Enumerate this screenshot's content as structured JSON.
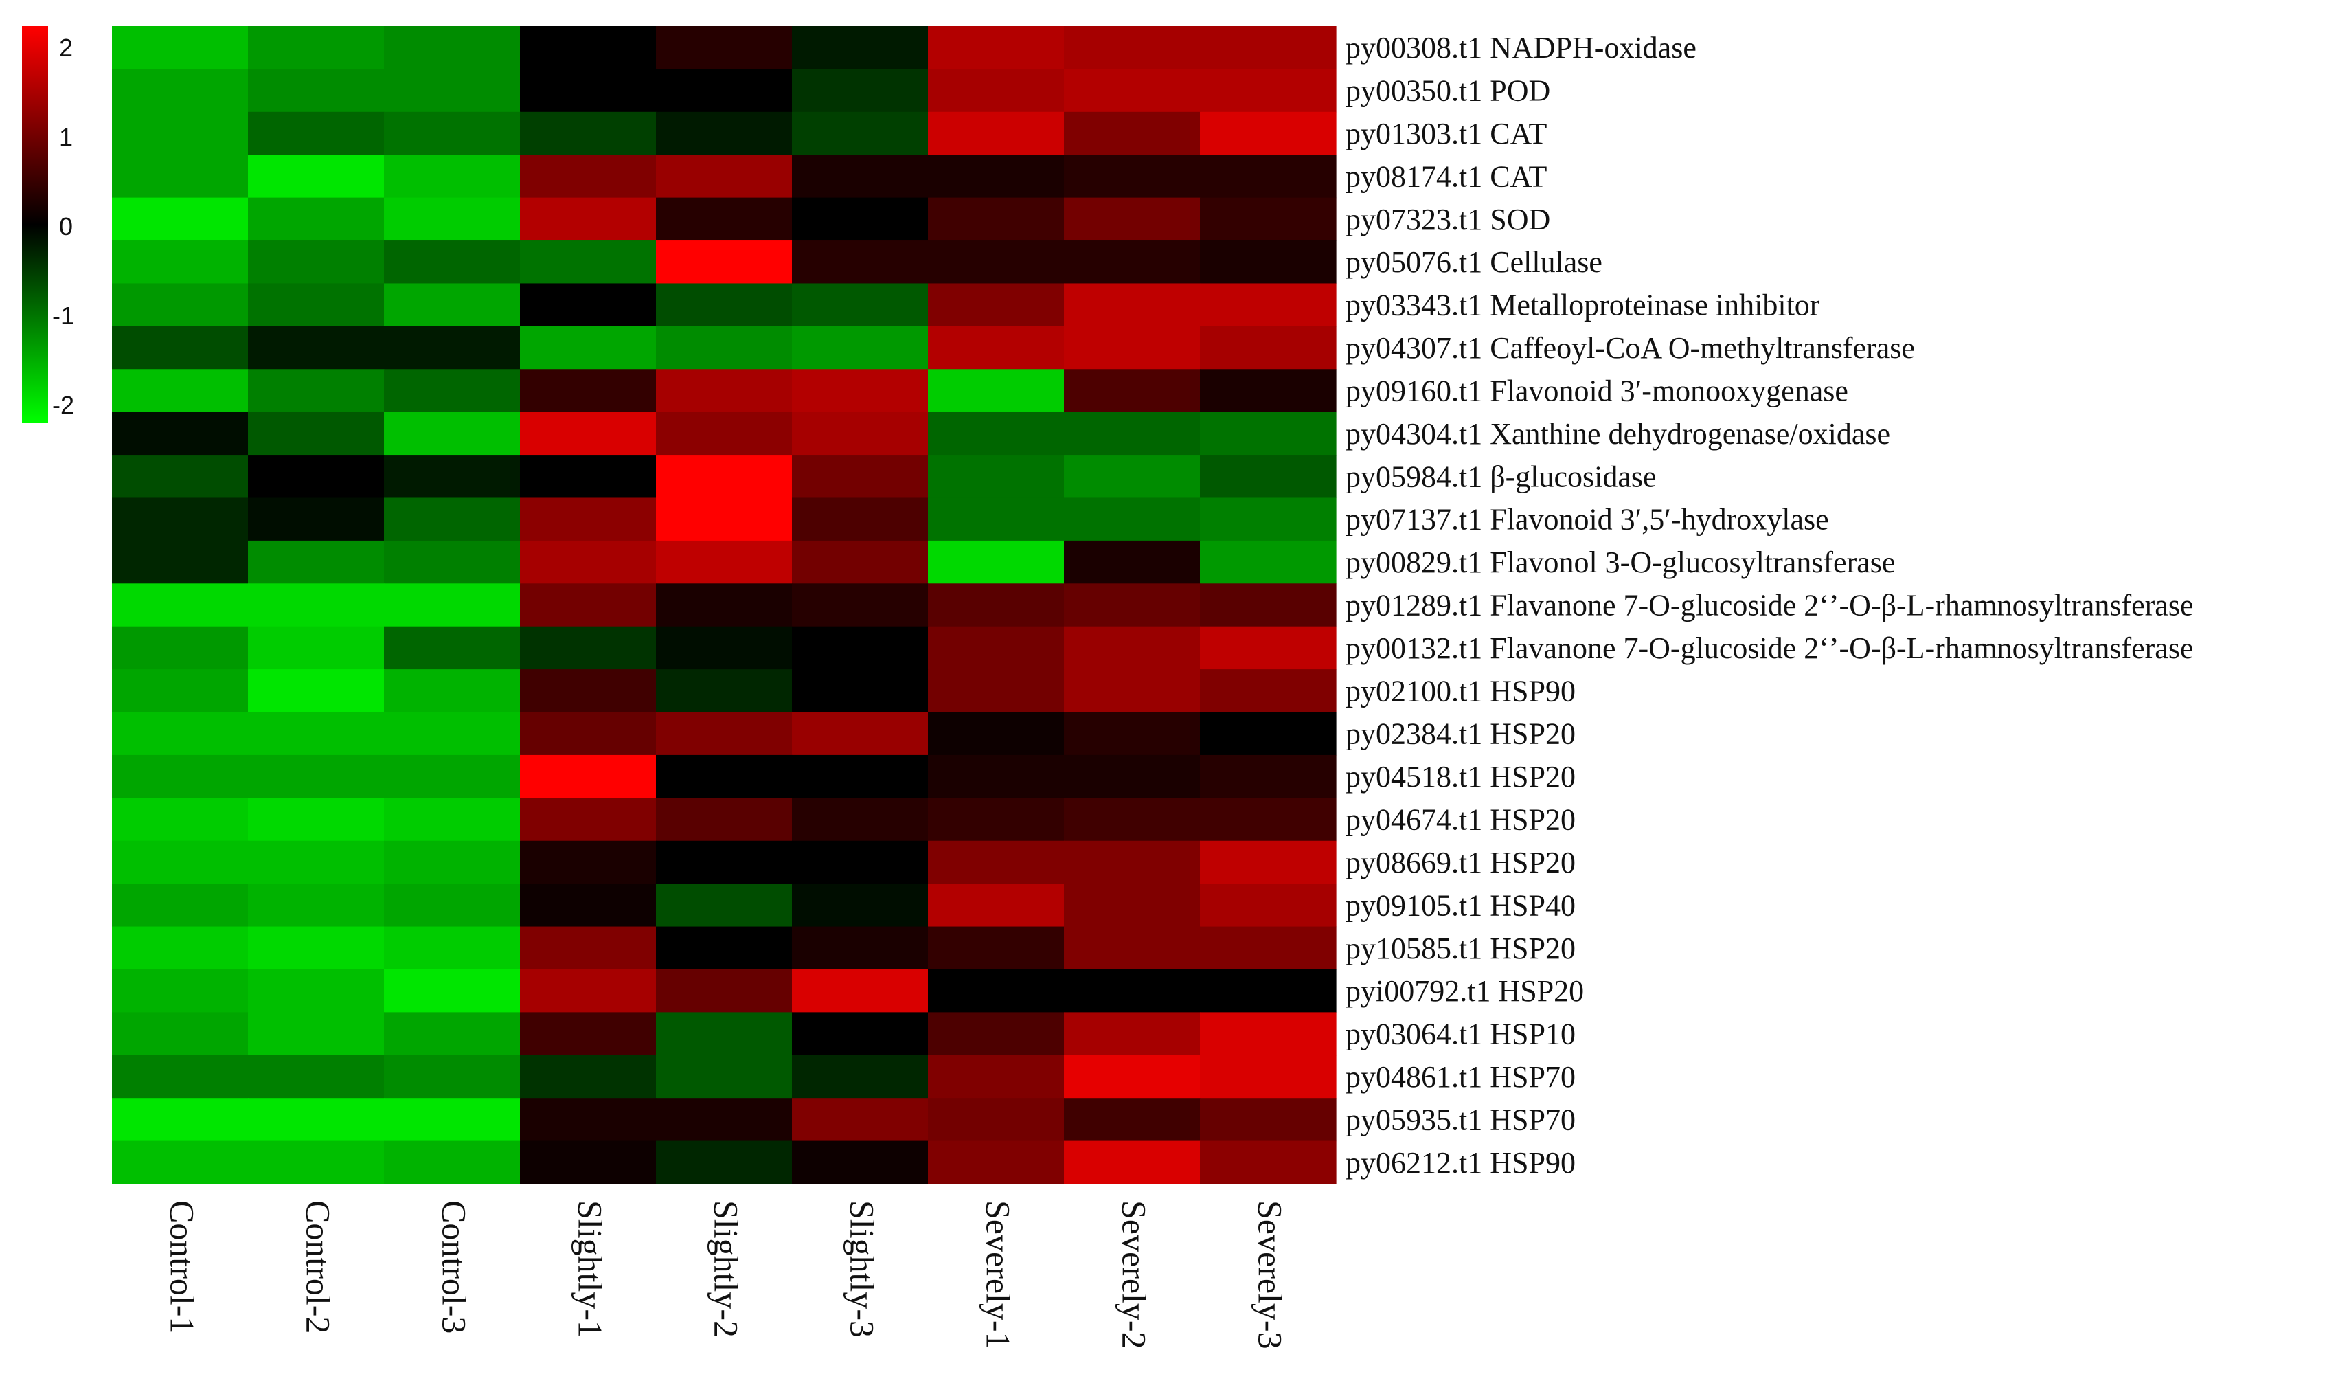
{
  "chart_data": {
    "type": "heatmap",
    "title": "",
    "xlabel": "",
    "ylabel": "",
    "color_scale": {
      "min": -2,
      "max": 2,
      "ticks": [
        "2",
        "1",
        "0",
        "-1",
        "-2"
      ],
      "low_color": "#00ff00",
      "mid_color": "#000000",
      "high_color": "#ff0000"
    },
    "columns": [
      "Control-1",
      "Control-2",
      "Control-3",
      "Slightly-1",
      "Slightly-2",
      "Slightly-3",
      "Severely-1",
      "Severely-2",
      "Severely-3"
    ],
    "rows": [
      "py00308.t1 NADPH-oxidase",
      "py00350.t1 POD",
      "py01303.t1 CAT",
      "py08174.t1 CAT",
      "py07323.t1 SOD",
      "py05076.t1 Cellulase",
      "py03343.t1 Metalloproteinase inhibitor",
      "py04307.t1 Caffeoyl-CoA O-methyltransferase",
      "py09160.t1 Flavonoid 3′-monooxygenase",
      "py04304.t1 Xanthine dehydrogenase/oxidase",
      "py05984.t1 β-glucosidase",
      "py07137.t1 Flavonoid 3′,5′-hydroxylase",
      "py00829.t1 Flavonol 3-O-glucosyltransferase",
      "py01289.t1 Flavanone 7-O-glucoside 2‘’-O-β-L-rhamnosyltransferase",
      "py00132.t1 Flavanone 7-O-glucoside 2‘’-O-β-L-rhamnosyltransferase",
      "py02100.t1 HSP90",
      "py02384.t1 HSP20",
      "py04518.t1 HSP20",
      "py04674.t1 HSP20",
      "py08669.t1 HSP20",
      "py09105.t1 HSP40",
      "py10585.t1 HSP20",
      "pyi00792.t1 HSP20",
      "py03064.t1 HSP10",
      "py04861.t1 HSP70",
      "py05935.t1 HSP70",
      "py06212.t1 HSP90"
    ],
    "values": [
      [
        -1.5,
        -1.2,
        -1.1,
        0.0,
        0.3,
        -0.2,
        1.4,
        1.3,
        1.3
      ],
      [
        -1.3,
        -1.1,
        -1.1,
        0.0,
        0.0,
        -0.4,
        1.3,
        1.4,
        1.4
      ],
      [
        -1.3,
        -0.8,
        -0.9,
        -0.5,
        -0.2,
        -0.5,
        1.6,
        1.0,
        1.7
      ],
      [
        -1.3,
        -1.8,
        -1.5,
        1.0,
        1.2,
        0.2,
        0.2,
        0.3,
        0.3
      ],
      [
        -1.8,
        -1.3,
        -1.6,
        1.4,
        0.3,
        0.0,
        0.5,
        0.9,
        0.4
      ],
      [
        -1.4,
        -1.0,
        -0.8,
        -0.9,
        2.0,
        0.3,
        0.3,
        0.3,
        0.2
      ],
      [
        -1.2,
        -0.9,
        -1.3,
        0.0,
        -0.6,
        -0.7,
        1.0,
        1.5,
        1.5
      ],
      [
        -0.6,
        -0.2,
        -0.2,
        -1.3,
        -1.1,
        -1.2,
        1.4,
        1.5,
        1.3
      ],
      [
        -1.5,
        -1.0,
        -0.8,
        0.4,
        1.3,
        1.4,
        -1.6,
        0.6,
        0.2
      ],
      [
        -0.1,
        -0.7,
        -1.5,
        1.7,
        1.1,
        1.3,
        -0.8,
        -0.8,
        -0.9
      ],
      [
        -0.6,
        0.0,
        -0.2,
        0.0,
        2.0,
        0.9,
        -0.9,
        -1.1,
        -0.7
      ],
      [
        -0.3,
        -0.1,
        -0.8,
        1.1,
        2.0,
        0.6,
        -0.9,
        -0.9,
        -1.0
      ],
      [
        -0.3,
        -1.1,
        -1.0,
        1.3,
        1.5,
        0.9,
        -1.7,
        0.2,
        -1.2
      ],
      [
        -1.7,
        -1.7,
        -1.7,
        0.9,
        0.2,
        0.3,
        0.7,
        0.8,
        0.7
      ],
      [
        -1.2,
        -1.6,
        -0.8,
        -0.4,
        -0.1,
        0.0,
        0.9,
        1.2,
        1.5
      ],
      [
        -1.3,
        -1.8,
        -1.4,
        0.5,
        -0.3,
        0.0,
        0.9,
        1.2,
        1.0
      ],
      [
        -1.5,
        -1.5,
        -1.5,
        0.8,
        1.0,
        1.2,
        0.1,
        0.3,
        0.0
      ],
      [
        -1.3,
        -1.3,
        -1.3,
        2.0,
        0.0,
        0.0,
        0.2,
        0.2,
        0.3
      ],
      [
        -1.6,
        -1.7,
        -1.6,
        1.0,
        0.7,
        0.3,
        0.4,
        0.5,
        0.5
      ],
      [
        -1.5,
        -1.5,
        -1.4,
        0.2,
        0.0,
        0.0,
        1.0,
        1.0,
        1.5
      ],
      [
        -1.3,
        -1.4,
        -1.3,
        0.1,
        -0.6,
        -0.1,
        1.4,
        1.0,
        1.3
      ],
      [
        -1.6,
        -1.7,
        -1.6,
        1.0,
        0.0,
        0.2,
        0.4,
        1.0,
        1.0
      ],
      [
        -1.4,
        -1.5,
        -1.8,
        1.3,
        0.8,
        1.7,
        0.0,
        0.0,
        0.0
      ],
      [
        -1.3,
        -1.5,
        -1.3,
        0.5,
        -0.7,
        0.0,
        0.6,
        1.3,
        1.7
      ],
      [
        -1.0,
        -1.0,
        -1.1,
        -0.4,
        -0.7,
        -0.3,
        1.0,
        1.8,
        1.7
      ],
      [
        -1.8,
        -1.8,
        -1.8,
        0.2,
        0.2,
        1.0,
        0.9,
        0.5,
        0.8
      ],
      [
        -1.5,
        -1.5,
        -1.4,
        0.1,
        -0.3,
        0.1,
        1.0,
        1.7,
        1.1
      ]
    ],
    "legend_placement": "top-left",
    "grid": false
  }
}
